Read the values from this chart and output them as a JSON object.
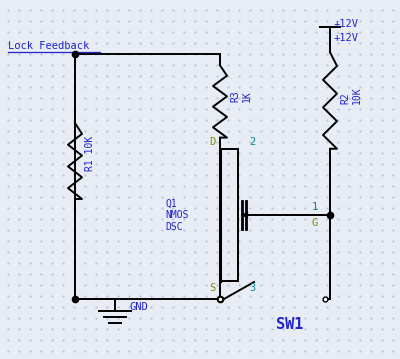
{
  "background_color": "#e8edf5",
  "dot_color": "#b8c4d8",
  "line_color": "#000000",
  "blue_text": "#2222cc",
  "olive_text": "#888800",
  "cyan_text": "#008888",
  "title_text": "Lock Feedback",
  "label_R1": "R1 10K",
  "label_R2": "R2\n10K",
  "label_R3": "R3\n1K",
  "label_Q1": "Q1\nNMOS\nDSC",
  "label_D": "D",
  "label_S": "S",
  "label_G": "G",
  "label_GND": "GND",
  "label_SW1": "SW1",
  "label_12V_1": "+12V",
  "label_12V_2": "+12V",
  "label_pin1": "1",
  "label_pin2": "2",
  "label_pin3": "3"
}
